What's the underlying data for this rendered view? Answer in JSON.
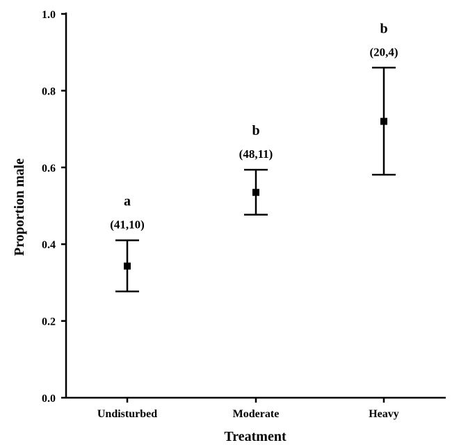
{
  "chart_data": {
    "type": "scatter",
    "title": "",
    "xlabel": "Treatment",
    "ylabel": "Proportion male",
    "ylim": [
      0.0,
      1.0
    ],
    "yticks": [
      "0.0",
      "0.2",
      "0.4",
      "0.6",
      "0.8",
      "1.0"
    ],
    "grid": false,
    "categories": [
      "Undisturbed",
      "Moderate",
      "Heavy"
    ],
    "values": [
      0.343,
      0.535,
      0.72
    ],
    "error_low": [
      0.277,
      0.477,
      0.581
    ],
    "error_high": [
      0.41,
      0.594,
      0.86
    ],
    "significance_letters": [
      "a",
      "b",
      "b"
    ],
    "sample_sizes": [
      "(41,10)",
      "(48,11)",
      "(20,4)"
    ]
  },
  "colors": {
    "marks": "#000000",
    "background": "#ffffff"
  }
}
